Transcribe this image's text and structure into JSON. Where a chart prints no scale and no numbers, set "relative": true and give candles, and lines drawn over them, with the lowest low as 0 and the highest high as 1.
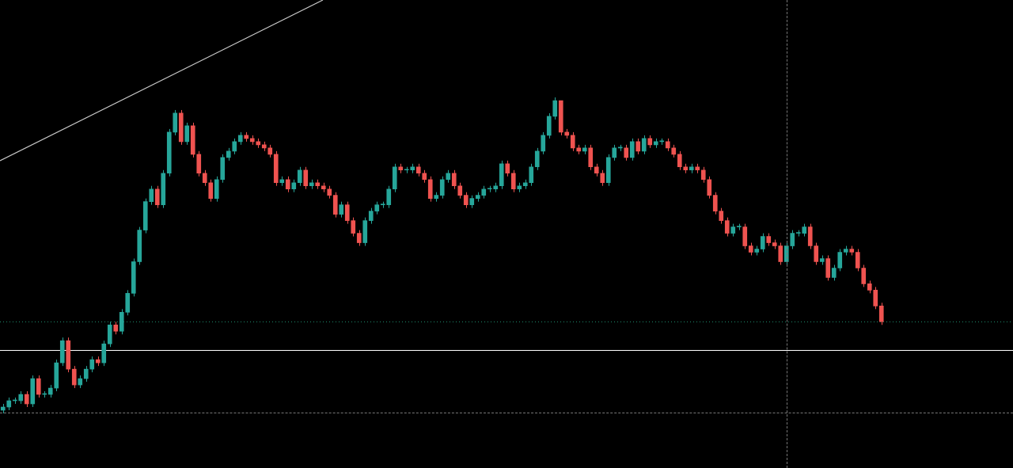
{
  "chart_data": {
    "type": "candlestick",
    "relative": true,
    "categories": [
      null,
      null,
      null,
      null,
      null,
      null,
      null,
      null,
      null,
      null,
      null,
      null,
      null,
      null,
      null,
      null,
      null,
      null,
      null,
      null,
      null,
      null,
      null,
      null,
      null,
      null,
      null,
      null,
      null,
      null,
      null,
      null,
      null,
      null,
      null,
      null,
      null,
      null,
      null,
      null,
      null,
      null,
      null,
      null,
      null,
      null,
      null,
      null,
      null,
      null,
      null,
      null,
      null,
      null,
      null,
      null,
      null,
      null,
      null,
      null,
      null,
      null,
      null,
      null,
      null,
      null,
      null,
      null,
      null,
      null,
      null,
      null,
      null,
      null,
      null,
      null,
      null,
      null,
      null,
      null,
      null,
      null,
      null,
      null,
      null,
      null,
      null,
      null,
      null,
      null,
      null,
      null,
      null,
      null,
      null,
      null,
      null,
      null,
      null,
      null,
      null,
      null,
      null,
      null,
      null,
      null,
      null,
      null,
      null,
      null,
      null,
      null,
      null,
      null,
      null,
      null,
      null,
      null,
      null,
      null,
      null,
      null,
      null,
      null,
      null,
      null,
      null,
      null,
      null,
      null,
      null,
      null,
      null,
      null,
      null,
      null,
      null,
      null,
      null,
      null,
      null,
      null,
      null,
      null,
      null,
      null,
      null,
      null,
      null
    ],
    "ohlc": [
      [
        0.01,
        0.03,
        0.0,
        0.02
      ],
      [
        0.02,
        0.05,
        0.01,
        0.04
      ],
      [
        0.04,
        0.05,
        0.03,
        0.04
      ],
      [
        0.04,
        0.07,
        0.03,
        0.06
      ],
      [
        0.06,
        0.07,
        0.02,
        0.03
      ],
      [
        0.03,
        0.12,
        0.02,
        0.11
      ],
      [
        0.11,
        0.12,
        0.05,
        0.06
      ],
      [
        0.06,
        0.07,
        0.05,
        0.06
      ],
      [
        0.06,
        0.09,
        0.05,
        0.08
      ],
      [
        0.08,
        0.17,
        0.07,
        0.16
      ],
      [
        0.16,
        0.24,
        0.15,
        0.23
      ],
      [
        0.23,
        0.24,
        0.13,
        0.14
      ],
      [
        0.14,
        0.15,
        0.08,
        0.09
      ],
      [
        0.09,
        0.12,
        0.08,
        0.11
      ],
      [
        0.11,
        0.15,
        0.1,
        0.14
      ],
      [
        0.14,
        0.18,
        0.13,
        0.17
      ],
      [
        0.17,
        0.18,
        0.15,
        0.16
      ],
      [
        0.16,
        0.23,
        0.15,
        0.22
      ],
      [
        0.22,
        0.29,
        0.21,
        0.28
      ],
      [
        0.28,
        0.29,
        0.25,
        0.26
      ],
      [
        0.26,
        0.33,
        0.25,
        0.32
      ],
      [
        0.32,
        0.39,
        0.31,
        0.38
      ],
      [
        0.38,
        0.49,
        0.37,
        0.48
      ],
      [
        0.48,
        0.59,
        0.47,
        0.58
      ],
      [
        0.58,
        0.68,
        0.57,
        0.67
      ],
      [
        0.67,
        0.72,
        0.66,
        0.71
      ],
      [
        0.71,
        0.72,
        0.65,
        0.66
      ],
      [
        0.66,
        0.77,
        0.65,
        0.76
      ],
      [
        0.76,
        0.9,
        0.75,
        0.89
      ],
      [
        0.89,
        0.96,
        0.88,
        0.95
      ],
      [
        0.95,
        0.96,
        0.85,
        0.86
      ],
      [
        0.86,
        0.92,
        0.85,
        0.91
      ],
      [
        0.91,
        0.92,
        0.81,
        0.82
      ],
      [
        0.82,
        0.83,
        0.75,
        0.76
      ],
      [
        0.76,
        0.77,
        0.72,
        0.73
      ],
      [
        0.73,
        0.74,
        0.67,
        0.68
      ],
      [
        0.68,
        0.75,
        0.67,
        0.74
      ],
      [
        0.74,
        0.82,
        0.73,
        0.81
      ],
      [
        0.81,
        0.84,
        0.8,
        0.83
      ],
      [
        0.83,
        0.87,
        0.82,
        0.86
      ],
      [
        0.86,
        0.89,
        0.85,
        0.88
      ],
      [
        0.88,
        0.89,
        0.86,
        0.87
      ],
      [
        0.87,
        0.88,
        0.85,
        0.86
      ],
      [
        0.86,
        0.87,
        0.84,
        0.85
      ],
      [
        0.85,
        0.86,
        0.83,
        0.84
      ],
      [
        0.84,
        0.85,
        0.81,
        0.82
      ],
      [
        0.82,
        0.83,
        0.72,
        0.73
      ],
      [
        0.73,
        0.75,
        0.72,
        0.74
      ],
      [
        0.74,
        0.75,
        0.7,
        0.71
      ],
      [
        0.71,
        0.74,
        0.7,
        0.73
      ],
      [
        0.73,
        0.78,
        0.72,
        0.77
      ],
      [
        0.77,
        0.78,
        0.71,
        0.72
      ],
      [
        0.72,
        0.74,
        0.71,
        0.73
      ],
      [
        0.73,
        0.74,
        0.71,
        0.72
      ],
      [
        0.72,
        0.73,
        0.7,
        0.71
      ],
      [
        0.71,
        0.72,
        0.68,
        0.69
      ],
      [
        0.69,
        0.7,
        0.62,
        0.63
      ],
      [
        0.63,
        0.67,
        0.62,
        0.66
      ],
      [
        0.66,
        0.67,
        0.6,
        0.61
      ],
      [
        0.61,
        0.62,
        0.56,
        0.57
      ],
      [
        0.57,
        0.58,
        0.53,
        0.54
      ],
      [
        0.54,
        0.62,
        0.53,
        0.61
      ],
      [
        0.61,
        0.65,
        0.6,
        0.64
      ],
      [
        0.64,
        0.67,
        0.63,
        0.66
      ],
      [
        0.66,
        0.67,
        0.65,
        0.66
      ],
      [
        0.66,
        0.72,
        0.65,
        0.71
      ],
      [
        0.71,
        0.79,
        0.7,
        0.78
      ],
      [
        0.78,
        0.79,
        0.76,
        0.77
      ],
      [
        0.77,
        0.78,
        0.76,
        0.77
      ],
      [
        0.77,
        0.79,
        0.76,
        0.78
      ],
      [
        0.78,
        0.79,
        0.75,
        0.76
      ],
      [
        0.76,
        0.77,
        0.73,
        0.74
      ],
      [
        0.74,
        0.75,
        0.67,
        0.68
      ],
      [
        0.68,
        0.7,
        0.67,
        0.69
      ],
      [
        0.69,
        0.75,
        0.68,
        0.74
      ],
      [
        0.74,
        0.77,
        0.73,
        0.76
      ],
      [
        0.76,
        0.77,
        0.71,
        0.72
      ],
      [
        0.72,
        0.73,
        0.68,
        0.69
      ],
      [
        0.69,
        0.7,
        0.65,
        0.66
      ],
      [
        0.66,
        0.69,
        0.65,
        0.68
      ],
      [
        0.68,
        0.7,
        0.67,
        0.69
      ],
      [
        0.69,
        0.72,
        0.68,
        0.71
      ],
      [
        0.71,
        0.72,
        0.7,
        0.71
      ],
      [
        0.71,
        0.73,
        0.7,
        0.72
      ],
      [
        0.72,
        0.8,
        0.71,
        0.79
      ],
      [
        0.79,
        0.8,
        0.75,
        0.76
      ],
      [
        0.76,
        0.77,
        0.7,
        0.71
      ],
      [
        0.71,
        0.73,
        0.7,
        0.72
      ],
      [
        0.72,
        0.74,
        0.71,
        0.73
      ],
      [
        0.73,
        0.79,
        0.72,
        0.78
      ],
      [
        0.78,
        0.84,
        0.77,
        0.83
      ],
      [
        0.83,
        0.89,
        0.82,
        0.88
      ],
      [
        0.88,
        0.95,
        0.87,
        0.94
      ],
      [
        0.94,
        1.0,
        0.93,
        0.99
      ],
      [
        0.99,
        0.99,
        0.88,
        0.89
      ],
      [
        0.89,
        0.9,
        0.87,
        0.88
      ],
      [
        0.88,
        0.89,
        0.83,
        0.84
      ],
      [
        0.84,
        0.85,
        0.82,
        0.83
      ],
      [
        0.83,
        0.85,
        0.82,
        0.84
      ],
      [
        0.84,
        0.85,
        0.77,
        0.78
      ],
      [
        0.78,
        0.79,
        0.75,
        0.76
      ],
      [
        0.76,
        0.77,
        0.72,
        0.73
      ],
      [
        0.73,
        0.82,
        0.72,
        0.81
      ],
      [
        0.81,
        0.85,
        0.8,
        0.84
      ],
      [
        0.84,
        0.85,
        0.83,
        0.84
      ],
      [
        0.84,
        0.85,
        0.8,
        0.81
      ],
      [
        0.81,
        0.87,
        0.8,
        0.86
      ],
      [
        0.86,
        0.87,
        0.82,
        0.83
      ],
      [
        0.83,
        0.88,
        0.82,
        0.87
      ],
      [
        0.87,
        0.88,
        0.84,
        0.85
      ],
      [
        0.85,
        0.87,
        0.84,
        0.86
      ],
      [
        0.86,
        0.87,
        0.85,
        0.86
      ],
      [
        0.86,
        0.87,
        0.83,
        0.84
      ],
      [
        0.84,
        0.85,
        0.81,
        0.82
      ],
      [
        0.82,
        0.83,
        0.77,
        0.78
      ],
      [
        0.78,
        0.79,
        0.76,
        0.77
      ],
      [
        0.77,
        0.79,
        0.76,
        0.78
      ],
      [
        0.78,
        0.79,
        0.76,
        0.77
      ],
      [
        0.77,
        0.78,
        0.73,
        0.74
      ],
      [
        0.74,
        0.75,
        0.68,
        0.69
      ],
      [
        0.69,
        0.7,
        0.63,
        0.64
      ],
      [
        0.64,
        0.65,
        0.6,
        0.61
      ],
      [
        0.61,
        0.62,
        0.56,
        0.57
      ],
      [
        0.57,
        0.6,
        0.56,
        0.59
      ],
      [
        0.59,
        0.6,
        0.58,
        0.59
      ],
      [
        0.59,
        0.6,
        0.52,
        0.53
      ],
      [
        0.53,
        0.54,
        0.5,
        0.51
      ],
      [
        0.51,
        0.53,
        0.5,
        0.52
      ],
      [
        0.52,
        0.57,
        0.51,
        0.56
      ],
      [
        0.56,
        0.57,
        0.53,
        0.54
      ],
      [
        0.54,
        0.55,
        0.52,
        0.53
      ],
      [
        0.53,
        0.54,
        0.47,
        0.48
      ],
      [
        0.48,
        0.54,
        0.47,
        0.53
      ],
      [
        0.53,
        0.58,
        0.52,
        0.57
      ],
      [
        0.57,
        0.58,
        0.56,
        0.57
      ],
      [
        0.57,
        0.6,
        0.56,
        0.59
      ],
      [
        0.59,
        0.6,
        0.52,
        0.53
      ],
      [
        0.53,
        0.54,
        0.47,
        0.48
      ],
      [
        0.48,
        0.5,
        0.47,
        0.49
      ],
      [
        0.49,
        0.5,
        0.42,
        0.43
      ],
      [
        0.43,
        0.47,
        0.42,
        0.46
      ],
      [
        0.46,
        0.52,
        0.45,
        0.51
      ],
      [
        0.51,
        0.53,
        0.5,
        0.52
      ],
      [
        0.52,
        0.53,
        0.5,
        0.51
      ],
      [
        0.51,
        0.52,
        0.45,
        0.46
      ],
      [
        0.46,
        0.47,
        0.4,
        0.41
      ],
      [
        0.41,
        0.42,
        0.38,
        0.39
      ],
      [
        0.39,
        0.4,
        0.33,
        0.34
      ],
      [
        0.34,
        0.35,
        0.28,
        0.29
      ]
    ],
    "ref_lines": [
      {
        "axis": "y",
        "value": 0.2,
        "color": "#ffffff",
        "line_style": "solid"
      },
      {
        "axis": "y",
        "value": 0.29,
        "color": "#1e8a6a",
        "line_style": "dotted"
      }
    ]
  }
}
